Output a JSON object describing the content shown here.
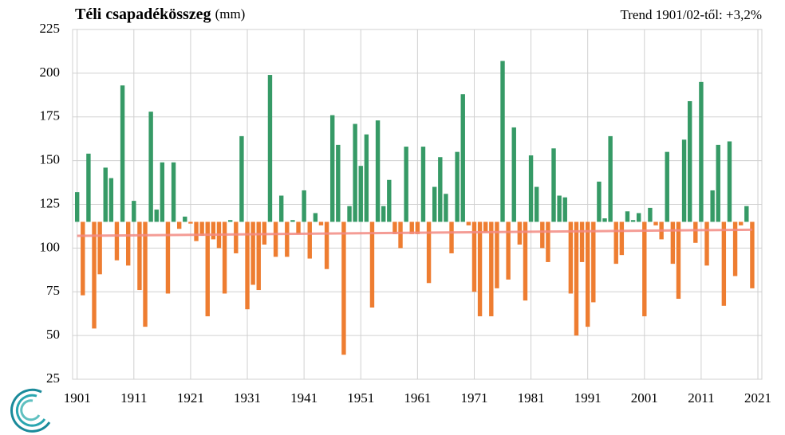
{
  "chart_data": {
    "type": "bar",
    "title": "Téli csapadékösszeg",
    "unit": "(mm)",
    "annotation": "Trend 1901/02-től: +3,2%",
    "baseline": 115,
    "color_above": "#369a66",
    "color_below": "#ee7d31",
    "x": [
      1901,
      1902,
      1903,
      1904,
      1905,
      1906,
      1907,
      1908,
      1909,
      1910,
      1911,
      1912,
      1913,
      1914,
      1915,
      1916,
      1917,
      1918,
      1919,
      1920,
      1921,
      1922,
      1923,
      1924,
      1925,
      1926,
      1927,
      1928,
      1929,
      1930,
      1931,
      1932,
      1933,
      1934,
      1935,
      1936,
      1937,
      1938,
      1939,
      1940,
      1941,
      1942,
      1943,
      1944,
      1945,
      1946,
      1947,
      1948,
      1949,
      1950,
      1951,
      1952,
      1953,
      1954,
      1955,
      1956,
      1957,
      1958,
      1959,
      1960,
      1961,
      1962,
      1963,
      1964,
      1965,
      1966,
      1967,
      1968,
      1969,
      1970,
      1971,
      1972,
      1973,
      1974,
      1975,
      1976,
      1977,
      1978,
      1979,
      1980,
      1981,
      1982,
      1983,
      1984,
      1985,
      1986,
      1987,
      1988,
      1989,
      1990,
      1991,
      1992,
      1993,
      1994,
      1995,
      1996,
      1997,
      1998,
      1999,
      2000,
      2001,
      2002,
      2003,
      2004,
      2005,
      2006,
      2007,
      2008,
      2009,
      2010,
      2011,
      2012,
      2013,
      2014,
      2015,
      2016,
      2017,
      2018,
      2019,
      2020
    ],
    "values": [
      132,
      73,
      154,
      54,
      85,
      146,
      140,
      93,
      193,
      90,
      127,
      76,
      55,
      178,
      122,
      149,
      74,
      149,
      111,
      118,
      114,
      104,
      107,
      61,
      105,
      100,
      74,
      116,
      97,
      164,
      65,
      79,
      76,
      102,
      199,
      95,
      130,
      95,
      116,
      108,
      133,
      94,
      120,
      113,
      88,
      176,
      159,
      39,
      124,
      171,
      147,
      165,
      66,
      173,
      124,
      139,
      108,
      100,
      158,
      108,
      108,
      158,
      80,
      135,
      152,
      131,
      97,
      155,
      188,
      113,
      75,
      61,
      109,
      61,
      77,
      207,
      82,
      169,
      102,
      70,
      153,
      135,
      100,
      92,
      157,
      130,
      129,
      74,
      50,
      92,
      55,
      69,
      138,
      117,
      164,
      91,
      96,
      121,
      116,
      120,
      61,
      123,
      113,
      105,
      155,
      91,
      71,
      162,
      184,
      103,
      195,
      90,
      133,
      159,
      67,
      161,
      84,
      113,
      124,
      77
    ],
    "trend": {
      "color": "#f28b82",
      "x": [
        1901,
        2020
      ],
      "values": [
        107,
        110.5
      ]
    },
    "xlim": [
      1900.2,
      2021.7
    ],
    "xticks": [
      1901,
      1911,
      1921,
      1931,
      1941,
      1951,
      1961,
      1971,
      1981,
      1991,
      2001,
      2011,
      2021
    ],
    "ylim": [
      25,
      225
    ],
    "yticks": [
      25,
      50,
      75,
      100,
      125,
      150,
      175,
      200,
      225
    ],
    "grid": true
  }
}
